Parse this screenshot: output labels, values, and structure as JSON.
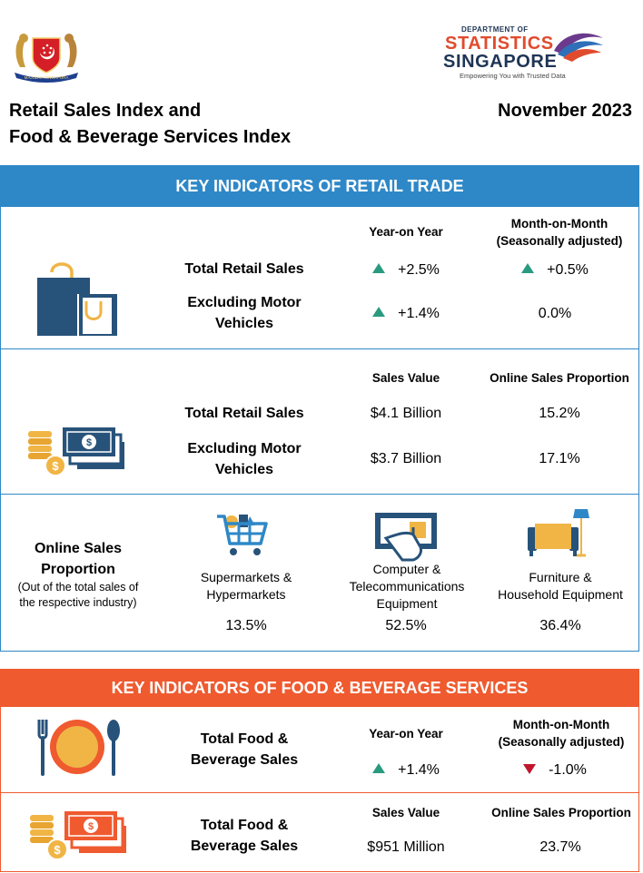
{
  "header": {
    "crest_motto": "MAJULAH SINGAPURA",
    "dos_line1": "DEPARTMENT OF",
    "dos_line2": "STATISTICS",
    "dos_line3": "SINGAPORE",
    "dos_tagline": "Empowering You with Trusted Data",
    "title_line1": "Retail Sales Index and",
    "title_line2": "Food & Beverage Services Index",
    "period": "November 2023"
  },
  "colors": {
    "retail_blue": "#2e88c7",
    "fnb_orange": "#ef5a2f",
    "up_green": "#2a9a7f",
    "down_red": "#c0152d",
    "navy": "#27527a",
    "gold": "#f0b545"
  },
  "retail": {
    "banner": "KEY INDICATORS OF RETAIL TRADE",
    "growth": {
      "icon": "shopping-bag-icon",
      "col_yoy": "Year-on Year",
      "col_mom_line1": "Month-on-Month",
      "col_mom_line2": "(Seasonally adjusted)",
      "rows": [
        {
          "label_line1": "Total Retail Sales",
          "label_line2": "",
          "yoy": "+2.5%",
          "mom": "+0.5%"
        },
        {
          "label_line1": "Excluding Motor",
          "label_line2": "Vehicles",
          "yoy": "+1.4%",
          "mom": "0.0%"
        }
      ]
    },
    "value": {
      "icon": "money-coins-icon",
      "col_value": "Sales Value",
      "col_online": "Online Sales Proportion",
      "rows": [
        {
          "label_line1": "Total Retail Sales",
          "label_line2": "",
          "value": "$4.1 Billion",
          "online": "15.2%"
        },
        {
          "label_line1": "Excluding Motor",
          "label_line2": "Vehicles",
          "value": "$3.7 Billion",
          "online": "17.1%"
        }
      ]
    },
    "online": {
      "label_line1": "Online Sales",
      "label_line2": "Proportion",
      "note_line1": "(Out of the total sales of",
      "note_line2": "the respective industry)",
      "categories": [
        {
          "icon": "shopping-cart-icon",
          "name_line1": "Supermarkets &",
          "name_line2": "Hypermarkets",
          "name_line3": "",
          "value": "13.5%"
        },
        {
          "icon": "computer-screen-icon",
          "name_line1": "Computer &",
          "name_line2": "Telecommunications",
          "name_line3": "Equipment",
          "value": "52.5%"
        },
        {
          "icon": "sofa-lamp-icon",
          "name_line1": "Furniture &",
          "name_line2": "Household Equipment",
          "name_line3": "",
          "value": "36.4%"
        }
      ]
    }
  },
  "fnb": {
    "banner": "KEY INDICATORS OF FOOD & BEVERAGE SERVICES",
    "growth": {
      "icon": "plate-cutlery-icon",
      "label_line1": "Total Food &",
      "label_line2": "Beverage Sales",
      "col_yoy": "Year-on Year",
      "col_mom_line1": "Month-on-Month",
      "col_mom_line2": "(Seasonally adjusted)",
      "yoy": "+1.4%",
      "mom": "-1.0%"
    },
    "value": {
      "icon": "money-coins-icon",
      "label_line1": "Total Food &",
      "label_line2": "Beverage Sales",
      "col_value": "Sales Value",
      "col_online": "Online Sales Proportion",
      "value": "$951 Million",
      "online": "23.7%"
    }
  }
}
